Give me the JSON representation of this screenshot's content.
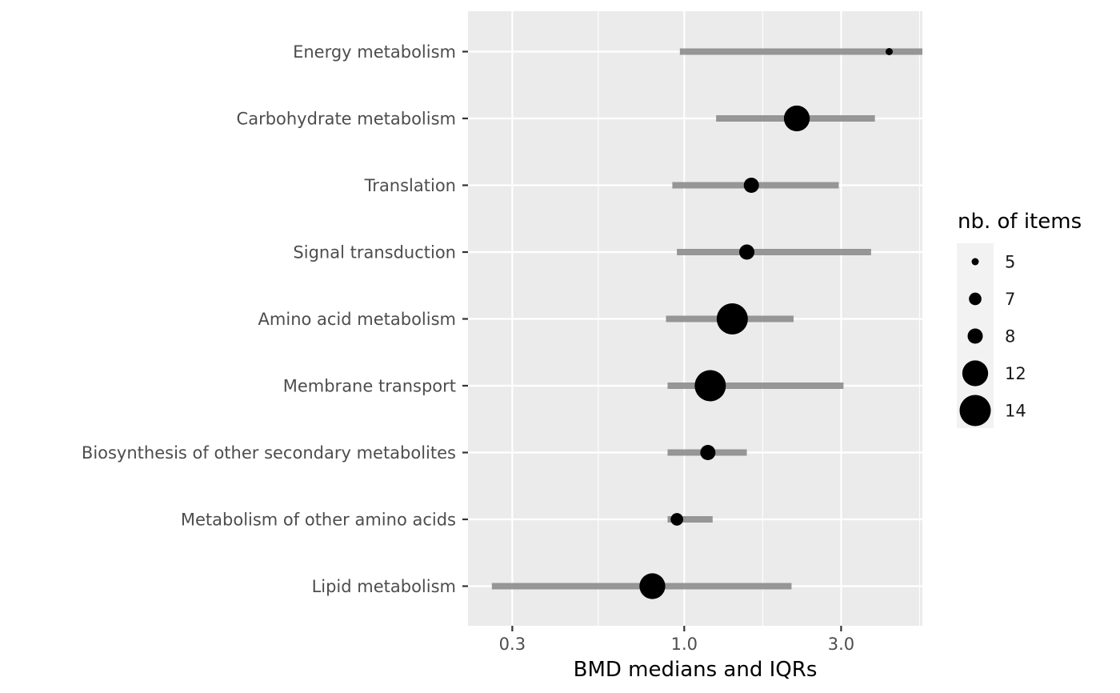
{
  "chart_data": {
    "type": "scatter",
    "subtype": "dot-range (median with IQR bar)",
    "xlabel": "BMD medians and IQRs",
    "ylabel": "",
    "x_scale": "log10",
    "xlim": [
      0.22,
      5.3
    ],
    "x_ticks": [
      0.3,
      1.0,
      3.0
    ],
    "x_tick_labels": [
      "0.3",
      "1.0",
      "3.0"
    ],
    "grid": true,
    "legend": {
      "title": "nb. of items",
      "position": "right",
      "sizes": [
        5,
        7,
        8,
        12,
        14
      ]
    },
    "categories": [
      "Energy metabolism",
      "Carbohydrate metabolism",
      "Translation",
      "Signal transduction",
      "Amino acid metabolism",
      "Membrane transport",
      "Biosynthesis of other secondary metabolites",
      "Metabolism of other amino acids",
      "Lipid metabolism"
    ],
    "series": [
      {
        "median": [
          4.2,
          2.2,
          1.6,
          1.55,
          1.4,
          1.2,
          1.18,
          0.95,
          0.8
        ],
        "iqr_low": [
          0.97,
          1.25,
          0.92,
          0.95,
          0.88,
          0.89,
          0.89,
          0.89,
          0.26
        ],
        "iqr_high": [
          5.6,
          3.8,
          2.95,
          3.7,
          2.15,
          3.05,
          1.55,
          1.22,
          2.12
        ],
        "nb_items": [
          5,
          12,
          8,
          8,
          14,
          14,
          8,
          7,
          12
        ]
      }
    ]
  },
  "colors": {
    "panel_bg": "#ebebeb",
    "grid": "#ffffff",
    "iqr_bar": "#8c8c8c",
    "point": "#000000",
    "text": "#4d4d4d"
  }
}
